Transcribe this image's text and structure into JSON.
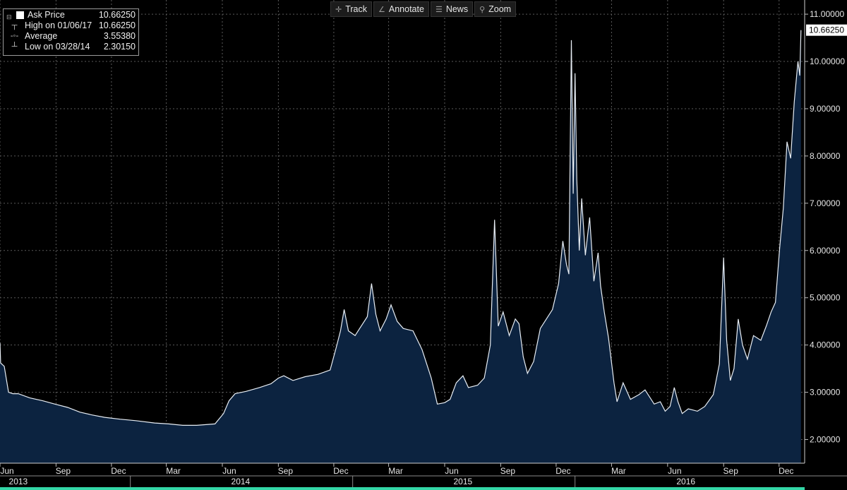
{
  "toolbar": {
    "track": "Track",
    "annotate": "Annotate",
    "news": "News",
    "zoom": "Zoom"
  },
  "legend": {
    "series_label": "Ask Price",
    "series_value": "10.66250",
    "high_label": "High on 01/06/17",
    "high_value": "10.66250",
    "average_label": "Average",
    "average_value": "3.55380",
    "low_label": "Low on 03/28/14",
    "low_value": "2.30150"
  },
  "colors": {
    "background": "#000000",
    "area_fill": "#0c2340",
    "line": "#e8eef5",
    "grid": "#5a5a5a",
    "last_price_box": "#ffffff",
    "bottom_bar": "#33d6a6"
  },
  "chart_data": {
    "type": "area",
    "ylim": [
      1.5,
      11.3
    ],
    "yticks": [
      "2.00000",
      "3.00000",
      "4.00000",
      "5.00000",
      "6.00000",
      "7.00000",
      "8.00000",
      "9.00000",
      "10.00000",
      "11.00000"
    ],
    "ytick_values": [
      2,
      3,
      4,
      5,
      6,
      7,
      8,
      9,
      10,
      11
    ],
    "xlim": [
      "2013-06-01",
      "2017-01-12"
    ],
    "month_ticks": [
      {
        "date": "2013-06-01",
        "label": "Jun"
      },
      {
        "date": "2013-09-01",
        "label": "Sep"
      },
      {
        "date": "2013-12-01",
        "label": "Dec"
      },
      {
        "date": "2014-03-01",
        "label": "Mar"
      },
      {
        "date": "2014-06-01",
        "label": "Jun"
      },
      {
        "date": "2014-09-01",
        "label": "Sep"
      },
      {
        "date": "2014-12-01",
        "label": "Dec"
      },
      {
        "date": "2015-03-01",
        "label": "Mar"
      },
      {
        "date": "2015-06-01",
        "label": "Jun"
      },
      {
        "date": "2015-09-01",
        "label": "Sep"
      },
      {
        "date": "2015-12-01",
        "label": "Dec"
      },
      {
        "date": "2016-03-01",
        "label": "Mar"
      },
      {
        "date": "2016-06-01",
        "label": "Jun"
      },
      {
        "date": "2016-09-01",
        "label": "Sep"
      },
      {
        "date": "2016-12-01",
        "label": "Dec"
      }
    ],
    "year_ticks": [
      {
        "date": "2013-07-01",
        "label": "2013"
      },
      {
        "date": "2014-07-01",
        "label": "2014"
      },
      {
        "date": "2015-07-01",
        "label": "2015"
      },
      {
        "date": "2016-07-01",
        "label": "2016"
      }
    ],
    "year_boundaries": [
      "2014-01-01",
      "2015-01-01",
      "2016-01-01"
    ],
    "last_price_label": "10.66250",
    "last_value": 10.6625,
    "series": [
      {
        "points": [
          [
            "2013-06-01",
            4.05
          ],
          [
            "2013-06-02",
            3.62
          ],
          [
            "2013-06-08",
            3.55
          ],
          [
            "2013-06-15",
            3.0
          ],
          [
            "2013-06-22",
            2.97
          ],
          [
            "2013-07-01",
            2.97
          ],
          [
            "2013-07-20",
            2.88
          ],
          [
            "2013-08-10",
            2.82
          ],
          [
            "2013-08-30",
            2.75
          ],
          [
            "2013-09-20",
            2.68
          ],
          [
            "2013-10-10",
            2.58
          ],
          [
            "2013-10-30",
            2.52
          ],
          [
            "2013-11-20",
            2.47
          ],
          [
            "2013-12-15",
            2.43
          ],
          [
            "2014-01-10",
            2.4
          ],
          [
            "2014-02-10",
            2.35
          ],
          [
            "2014-03-05",
            2.33
          ],
          [
            "2014-03-28",
            2.3
          ],
          [
            "2014-04-20",
            2.3
          ],
          [
            "2014-05-20",
            2.33
          ],
          [
            "2014-06-03",
            2.55
          ],
          [
            "2014-06-12",
            2.82
          ],
          [
            "2014-06-22",
            2.97
          ],
          [
            "2014-07-10",
            3.02
          ],
          [
            "2014-08-01",
            3.1
          ],
          [
            "2014-08-20",
            3.18
          ],
          [
            "2014-09-01",
            3.3
          ],
          [
            "2014-09-10",
            3.35
          ],
          [
            "2014-09-25",
            3.25
          ],
          [
            "2014-10-15",
            3.33
          ],
          [
            "2014-11-05",
            3.38
          ],
          [
            "2014-11-25",
            3.47
          ],
          [
            "2014-12-05",
            3.95
          ],
          [
            "2014-12-12",
            4.3
          ],
          [
            "2014-12-18",
            4.75
          ],
          [
            "2014-12-25",
            4.3
          ],
          [
            "2015-01-05",
            4.2
          ],
          [
            "2015-01-15",
            4.4
          ],
          [
            "2015-01-25",
            4.6
          ],
          [
            "2015-02-01",
            5.3
          ],
          [
            "2015-02-08",
            4.65
          ],
          [
            "2015-02-15",
            4.3
          ],
          [
            "2015-02-25",
            4.55
          ],
          [
            "2015-03-05",
            4.85
          ],
          [
            "2015-03-15",
            4.5
          ],
          [
            "2015-03-25",
            4.35
          ],
          [
            "2015-04-10",
            4.3
          ],
          [
            "2015-04-25",
            3.9
          ],
          [
            "2015-05-10",
            3.3
          ],
          [
            "2015-05-20",
            2.75
          ],
          [
            "2015-06-01",
            2.78
          ],
          [
            "2015-06-10",
            2.85
          ],
          [
            "2015-06-20",
            3.2
          ],
          [
            "2015-07-01",
            3.35
          ],
          [
            "2015-07-10",
            3.1
          ],
          [
            "2015-07-25",
            3.15
          ],
          [
            "2015-08-05",
            3.3
          ],
          [
            "2015-08-15",
            4.0
          ],
          [
            "2015-08-22",
            6.65
          ],
          [
            "2015-08-28",
            4.4
          ],
          [
            "2015-09-05",
            4.7
          ],
          [
            "2015-09-15",
            4.2
          ],
          [
            "2015-09-25",
            4.55
          ],
          [
            "2015-10-01",
            4.45
          ],
          [
            "2015-10-08",
            3.75
          ],
          [
            "2015-10-15",
            3.4
          ],
          [
            "2015-10-25",
            3.65
          ],
          [
            "2015-11-05",
            4.35
          ],
          [
            "2015-11-15",
            4.55
          ],
          [
            "2015-11-25",
            4.75
          ],
          [
            "2015-12-05",
            5.3
          ],
          [
            "2015-12-12",
            6.2
          ],
          [
            "2015-12-18",
            5.7
          ],
          [
            "2015-12-22",
            5.5
          ],
          [
            "2015-12-26",
            10.45
          ],
          [
            "2015-12-29",
            7.2
          ],
          [
            "2016-01-01",
            9.75
          ],
          [
            "2016-01-04",
            7.5
          ],
          [
            "2016-01-08",
            6.0
          ],
          [
            "2016-01-12",
            7.1
          ],
          [
            "2016-01-18",
            5.9
          ],
          [
            "2016-01-25",
            6.7
          ],
          [
            "2016-02-01",
            5.35
          ],
          [
            "2016-02-08",
            5.95
          ],
          [
            "2016-02-12",
            5.25
          ],
          [
            "2016-02-18",
            4.7
          ],
          [
            "2016-02-25",
            4.15
          ],
          [
            "2016-03-05",
            3.2
          ],
          [
            "2016-03-10",
            2.8
          ],
          [
            "2016-03-20",
            3.2
          ],
          [
            "2016-04-01",
            2.85
          ],
          [
            "2016-04-15",
            2.95
          ],
          [
            "2016-04-25",
            3.05
          ],
          [
            "2016-05-10",
            2.75
          ],
          [
            "2016-05-20",
            2.8
          ],
          [
            "2016-05-28",
            2.6
          ],
          [
            "2016-06-05",
            2.7
          ],
          [
            "2016-06-12",
            3.1
          ],
          [
            "2016-06-18",
            2.8
          ],
          [
            "2016-06-25",
            2.55
          ],
          [
            "2016-07-05",
            2.65
          ],
          [
            "2016-07-20",
            2.6
          ],
          [
            "2016-08-01",
            2.7
          ],
          [
            "2016-08-15",
            2.95
          ],
          [
            "2016-08-25",
            3.6
          ],
          [
            "2016-09-01",
            5.85
          ],
          [
            "2016-09-06",
            4.1
          ],
          [
            "2016-09-12",
            3.25
          ],
          [
            "2016-09-18",
            3.5
          ],
          [
            "2016-09-25",
            4.55
          ],
          [
            "2016-10-02",
            4.0
          ],
          [
            "2016-10-10",
            3.7
          ],
          [
            "2016-10-20",
            4.2
          ],
          [
            "2016-11-01",
            4.1
          ],
          [
            "2016-11-10",
            4.4
          ],
          [
            "2016-11-18",
            4.7
          ],
          [
            "2016-11-25",
            4.9
          ],
          [
            "2016-12-02",
            6.05
          ],
          [
            "2016-12-08",
            6.9
          ],
          [
            "2016-12-14",
            8.3
          ],
          [
            "2016-12-20",
            7.95
          ],
          [
            "2016-12-26",
            9.15
          ],
          [
            "2017-01-01",
            10.0
          ],
          [
            "2017-01-04",
            9.7
          ],
          [
            "2017-01-06",
            10.6625
          ]
        ]
      }
    ]
  }
}
